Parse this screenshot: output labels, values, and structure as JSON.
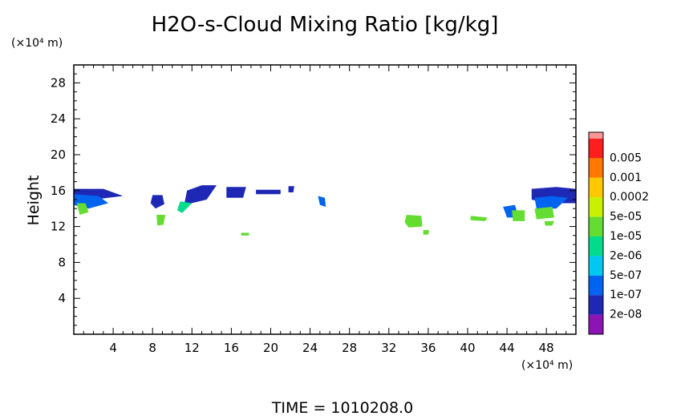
{
  "chart_data": {
    "type": "heatmap",
    "title": "H2O-s-Cloud Mixing Ratio [kg/kg]",
    "ylabel": "Height",
    "y_unit": "(×10⁴ m)",
    "x_unit": "(×10⁴ m)",
    "footer": "TIME = 1010208.0",
    "xlim": [
      0,
      51
    ],
    "ylim": [
      0,
      30
    ],
    "xticks_major": [
      4,
      8,
      12,
      16,
      20,
      24,
      28,
      32,
      36,
      40,
      44,
      48
    ],
    "yticks_major": [
      4,
      8,
      12,
      16,
      20,
      24,
      28
    ],
    "legend": {
      "placement": "right",
      "levels": [
        "0.005",
        "0.001",
        "0.0002",
        "5e-05",
        "1e-05",
        "2e-06",
        "5e-07",
        "1e-07",
        "2e-08"
      ],
      "colors": [
        "#ff1e1e",
        "#ff7800",
        "#ffc800",
        "#c8f000",
        "#64dc32",
        "#00dc8c",
        "#00c8f0",
        "#0064f0",
        "#1e28b4",
        "#8c14b4"
      ],
      "top_color": "#ff9696"
    },
    "regions": [
      {
        "level": 1,
        "color": "#1e28b4",
        "points": [
          [
            0,
            16.2
          ],
          [
            3,
            16.2
          ],
          [
            5,
            15.4
          ],
          [
            2,
            15.0
          ],
          [
            0,
            15.2
          ]
        ]
      },
      {
        "level": 2,
        "color": "#0064f0",
        "points": [
          [
            0,
            15.6
          ],
          [
            2.5,
            15.4
          ],
          [
            3.5,
            14.6
          ],
          [
            1.5,
            14.0
          ],
          [
            0,
            14.4
          ]
        ]
      },
      {
        "level": 4,
        "color": "#64dc32",
        "points": [
          [
            0.3,
            14.6
          ],
          [
            1.2,
            14.6
          ],
          [
            1.5,
            13.6
          ],
          [
            0.6,
            13.3
          ]
        ]
      },
      {
        "level": 1,
        "color": "#1e28b4",
        "points": [
          [
            8.0,
            15.5
          ],
          [
            9.0,
            15.5
          ],
          [
            9.2,
            14.5
          ],
          [
            8.3,
            14.0
          ],
          [
            7.8,
            14.6
          ]
        ]
      },
      {
        "level": 4,
        "color": "#64dc32",
        "points": [
          [
            8.4,
            13.3
          ],
          [
            9.3,
            13.3
          ],
          [
            9.1,
            12.2
          ],
          [
            8.5,
            12.1
          ]
        ]
      },
      {
        "level": 1,
        "color": "#1e28b4",
        "points": [
          [
            11.5,
            16.0
          ],
          [
            13.0,
            16.6
          ],
          [
            14.5,
            16.6
          ],
          [
            13.5,
            15.0
          ],
          [
            11.2,
            14.4
          ]
        ]
      },
      {
        "level": 3,
        "color": "#00dc8c",
        "points": [
          [
            10.8,
            14.8
          ],
          [
            12.0,
            14.6
          ],
          [
            11.0,
            13.5
          ],
          [
            10.5,
            13.8
          ]
        ]
      },
      {
        "level": 1,
        "color": "#1e28b4",
        "points": [
          [
            15.5,
            16.4
          ],
          [
            17.5,
            16.4
          ],
          [
            17.2,
            15.2
          ],
          [
            15.5,
            15.2
          ]
        ]
      },
      {
        "level": 1,
        "color": "#1e28b4",
        "points": [
          [
            18.5,
            16.1
          ],
          [
            21.0,
            16.1
          ],
          [
            21.0,
            15.6
          ],
          [
            18.5,
            15.6
          ]
        ]
      },
      {
        "level": 1,
        "color": "#1e28b4",
        "points": [
          [
            21.8,
            16.5
          ],
          [
            22.4,
            16.5
          ],
          [
            22.3,
            15.8
          ],
          [
            21.8,
            15.8
          ]
        ]
      },
      {
        "level": 2,
        "color": "#0064f0",
        "points": [
          [
            24.8,
            15.4
          ],
          [
            25.5,
            15.2
          ],
          [
            25.6,
            14.2
          ],
          [
            25.0,
            14.4
          ]
        ]
      },
      {
        "level": 4,
        "color": "#64dc32",
        "points": [
          [
            33.8,
            13.3
          ],
          [
            35.3,
            13.2
          ],
          [
            35.4,
            12.0
          ],
          [
            34.0,
            11.9
          ],
          [
            33.6,
            12.5
          ]
        ]
      },
      {
        "level": 4,
        "color": "#64dc32",
        "points": [
          [
            40.3,
            13.2
          ],
          [
            42.0,
            13.0
          ],
          [
            41.8,
            12.6
          ],
          [
            40.3,
            12.7
          ]
        ]
      },
      {
        "level": 2,
        "color": "#0064f0",
        "points": [
          [
            43.6,
            14.2
          ],
          [
            44.8,
            14.4
          ],
          [
            45.2,
            13.0
          ],
          [
            44.0,
            13.0
          ]
        ]
      },
      {
        "level": 4,
        "color": "#64dc32",
        "points": [
          [
            44.5,
            13.8
          ],
          [
            45.8,
            13.8
          ],
          [
            45.8,
            12.6
          ],
          [
            44.6,
            12.6
          ]
        ]
      },
      {
        "level": 1,
        "color": "#1e28b4",
        "points": [
          [
            46.5,
            16.2
          ],
          [
            49.0,
            16.4
          ],
          [
            51,
            16.2
          ],
          [
            51,
            14.6
          ],
          [
            48.0,
            14.6
          ],
          [
            46.5,
            15.0
          ]
        ]
      },
      {
        "level": 2,
        "color": "#0064f0",
        "points": [
          [
            46.8,
            15.2
          ],
          [
            48.5,
            15.4
          ],
          [
            50.2,
            15.2
          ],
          [
            49.0,
            14.0
          ],
          [
            47.0,
            14.0
          ]
        ]
      },
      {
        "level": 4,
        "color": "#64dc32",
        "points": [
          [
            46.8,
            14.0
          ],
          [
            48.6,
            14.2
          ],
          [
            48.8,
            13.0
          ],
          [
            47.0,
            12.8
          ]
        ]
      },
      {
        "level": 4,
        "color": "#64dc32",
        "points": [
          [
            47.8,
            12.6
          ],
          [
            48.8,
            12.6
          ],
          [
            48.6,
            12.1
          ],
          [
            47.9,
            12.1
          ]
        ]
      },
      {
        "level": 4,
        "color": "#64dc32",
        "points": [
          [
            17.0,
            11.3
          ],
          [
            17.8,
            11.3
          ],
          [
            17.8,
            11.0
          ],
          [
            17.0,
            11.0
          ]
        ]
      },
      {
        "level": 4,
        "color": "#64dc32",
        "points": [
          [
            35.5,
            11.6
          ],
          [
            36.1,
            11.6
          ],
          [
            36.0,
            11.1
          ],
          [
            35.5,
            11.1
          ]
        ]
      }
    ]
  }
}
